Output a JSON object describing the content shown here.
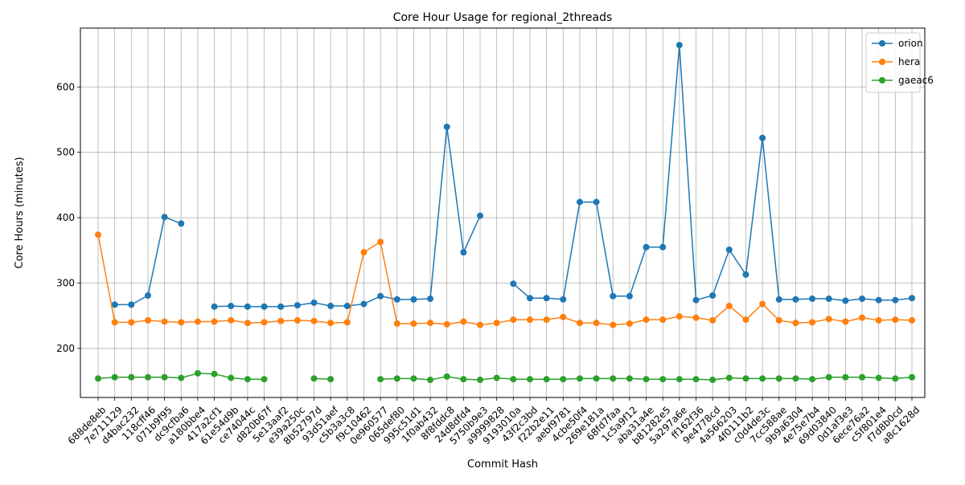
{
  "chart_data": {
    "type": "line",
    "title": "Core Hour Usage for regional_2threads",
    "xlabel": "Commit Hash",
    "ylabel": "Core Hours (minutes)",
    "ylim": [
      125,
      690
    ],
    "yticks": [
      200,
      300,
      400,
      500,
      600
    ],
    "grid": true,
    "legend_position": "top-right",
    "categories": [
      "688de8eb",
      "7e711129",
      "d4bac232",
      "118cff46",
      "071b9f95",
      "dc9cfba6",
      "a180bbe4",
      "417a2cf1",
      "61e54d9b",
      "ce74044c",
      "d820b67f",
      "5e13aaf2",
      "e39a250c",
      "8b52797d",
      "93d51aef",
      "c5b3a3c8",
      "f9c10462",
      "0e960577",
      "065def80",
      "995c51d1",
      "1f0ab432",
      "8f8fddc8",
      "24d8dfd4",
      "5750b9e3",
      "a9999828",
      "9193010a",
      "43f2c3bd",
      "f22b2e11",
      "aebf9781",
      "4cbe50f4",
      "269e181a",
      "68fd7faa",
      "1c5a9f12",
      "aba31a4e",
      "b81282e5",
      "5a297a6e",
      "ff162f36",
      "9e4778cd",
      "4a566203",
      "4f0111b2",
      "c0d4de3c",
      "7cc588ae",
      "9b9a6304",
      "4e75e7b4",
      "69d03840",
      "0d1af3e3",
      "6ece76a2",
      "c5f801e4",
      "f7d8b0cd",
      "a8c1628d"
    ],
    "series": [
      {
        "name": "orion",
        "color": "#1f77b4",
        "values": [
          null,
          267,
          267,
          281,
          401,
          391,
          null,
          264,
          265,
          264,
          264,
          264,
          266,
          270,
          265,
          265,
          268,
          280,
          275,
          275,
          276,
          539,
          347,
          403,
          null,
          299,
          277,
          277,
          275,
          424,
          424,
          280,
          280,
          355,
          355,
          664,
          274,
          281,
          351,
          313,
          522,
          275,
          275,
          276,
          276,
          273,
          276,
          274,
          274,
          277
        ]
      },
      {
        "name": "hera",
        "color": "#ff7f0e",
        "values": [
          374,
          240,
          240,
          243,
          241,
          240,
          241,
          241,
          243,
          239,
          240,
          242,
          243,
          242,
          239,
          240,
          347,
          363,
          238,
          238,
          239,
          237,
          241,
          236,
          239,
          244,
          244,
          244,
          248,
          239,
          239,
          236,
          238,
          244,
          244,
          249,
          247,
          243,
          265,
          244,
          268,
          243,
          239,
          240,
          245,
          241,
          247,
          243,
          244,
          243
        ]
      },
      {
        "name": "gaeac6",
        "color": "#2ca02c",
        "values": [
          154,
          156,
          156,
          156,
          156,
          155,
          162,
          161,
          155,
          153,
          153,
          null,
          null,
          154,
          153,
          null,
          null,
          153,
          154,
          154,
          152,
          157,
          153,
          152,
          155,
          153,
          153,
          153,
          153,
          154,
          154,
          154,
          154,
          153,
          153,
          153,
          153,
          152,
          155,
          154,
          154,
          154,
          154,
          153,
          156,
          156,
          156,
          155,
          154,
          156
        ]
      }
    ]
  }
}
